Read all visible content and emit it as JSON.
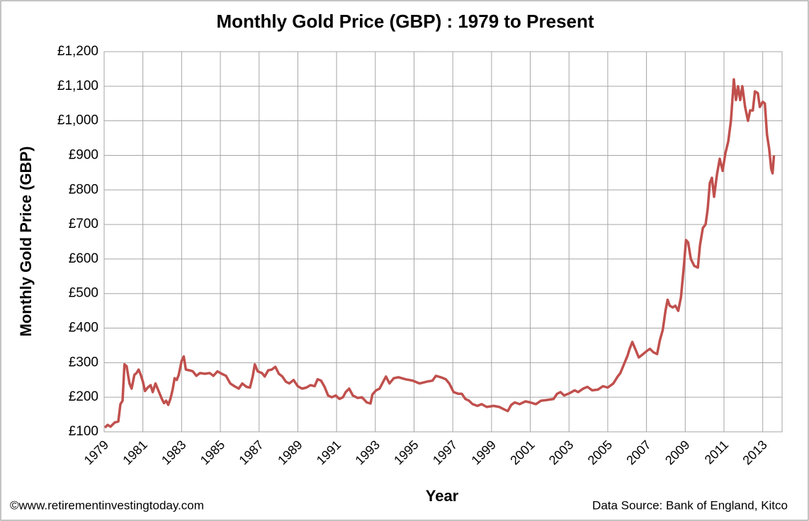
{
  "chart_data": {
    "type": "line",
    "title": "Monthly Gold Price (GBP) : 1979 to Present",
    "x_label": "Year",
    "y_label": "Monthly Gold Price  (GBP)",
    "annotations": [
      "©www.retirementinvestingtoday.com",
      "Data Source: Bank of England, Kitco"
    ],
    "xlim": [
      1979,
      2014
    ],
    "xticks": [
      1979,
      1981,
      1983,
      1985,
      1987,
      1989,
      1991,
      1993,
      1995,
      1997,
      1999,
      2001,
      2003,
      2005,
      2007,
      2009,
      2011,
      2013
    ],
    "ylim": [
      100,
      1200
    ],
    "yticks": [
      {
        "value": 100,
        "label": "£100"
      },
      {
        "value": 200,
        "label": "£200"
      },
      {
        "value": 300,
        "label": "£300"
      },
      {
        "value": 400,
        "label": "£400"
      },
      {
        "value": 500,
        "label": "£500"
      },
      {
        "value": 600,
        "label": "£600"
      },
      {
        "value": 700,
        "label": "£700"
      },
      {
        "value": 800,
        "label": "£800"
      },
      {
        "value": 900,
        "label": "£900"
      },
      {
        "value": 1000,
        "label": "£1,000"
      },
      {
        "value": 1100,
        "label": "£1,100"
      },
      {
        "value": 1200,
        "label": "£1,200"
      }
    ],
    "grid": true,
    "x": [
      1979.04,
      1979.18,
      1979.33,
      1979.55,
      1979.73,
      1979.84,
      1979.95,
      1980.05,
      1980.16,
      1980.31,
      1980.42,
      1980.56,
      1980.67,
      1980.78,
      1980.89,
      1981.0,
      1981.11,
      1981.25,
      1981.4,
      1981.51,
      1981.65,
      1981.76,
      1981.87,
      1981.98,
      1982.09,
      1982.2,
      1982.31,
      1982.42,
      1982.53,
      1982.64,
      1982.75,
      1982.85,
      1983.0,
      1983.11,
      1983.22,
      1983.4,
      1983.58,
      1983.76,
      1983.95,
      1984.2,
      1984.45,
      1984.64,
      1984.85,
      1985.07,
      1985.29,
      1985.51,
      1985.73,
      1985.95,
      1986.13,
      1986.35,
      1986.53,
      1986.67,
      1986.78,
      1986.93,
      1987.15,
      1987.29,
      1987.47,
      1987.65,
      1987.84,
      1988.02,
      1988.2,
      1988.38,
      1988.56,
      1988.78,
      1989.0,
      1989.22,
      1989.44,
      1989.65,
      1989.87,
      1990.02,
      1990.2,
      1990.38,
      1990.56,
      1990.75,
      1990.96,
      1991.15,
      1991.33,
      1991.47,
      1991.65,
      1991.84,
      1992.09,
      1992.31,
      1992.56,
      1992.75,
      1992.85,
      1993.04,
      1993.22,
      1993.36,
      1993.55,
      1993.73,
      1993.95,
      1994.2,
      1994.56,
      1994.93,
      1995.29,
      1995.65,
      1995.95,
      1996.13,
      1996.38,
      1996.64,
      1996.82,
      1997.04,
      1997.29,
      1997.47,
      1997.65,
      1997.84,
      1998.02,
      1998.27,
      1998.49,
      1998.75,
      1999.11,
      1999.4,
      1999.65,
      1999.84,
      2000.02,
      2000.2,
      2000.45,
      2000.75,
      2001.0,
      2001.29,
      2001.55,
      2001.84,
      2002.2,
      2002.38,
      2002.56,
      2002.75,
      2003.04,
      2003.29,
      2003.47,
      2003.73,
      2003.95,
      2004.2,
      2004.49,
      2004.75,
      2005.0,
      2005.29,
      2005.51,
      2005.65,
      2005.87,
      2006.02,
      2006.13,
      2006.27,
      2006.42,
      2006.6,
      2006.82,
      2007.04,
      2007.18,
      2007.36,
      2007.55,
      2007.69,
      2007.84,
      2007.98,
      2008.09,
      2008.2,
      2008.35,
      2008.49,
      2008.64,
      2008.78,
      2008.93,
      2009.04,
      2009.15,
      2009.29,
      2009.47,
      2009.65,
      2009.76,
      2009.91,
      2010.05,
      2010.16,
      2010.27,
      2010.38,
      2010.49,
      2010.64,
      2010.78,
      2010.93,
      2011.07,
      2011.22,
      2011.36,
      2011.51,
      2011.62,
      2011.73,
      2011.84,
      2011.95,
      2012.09,
      2012.24,
      2012.35,
      2012.49,
      2012.6,
      2012.75,
      2012.85,
      2013.0,
      2013.11,
      2013.22,
      2013.33,
      2013.44,
      2013.51,
      2013.58
    ],
    "series": [
      {
        "name": "Monthly Gold Price",
        "color": "#c0504d",
        "values": [
          112,
          120,
          115,
          127,
          130,
          180,
          190,
          295,
          290,
          240,
          225,
          265,
          270,
          280,
          265,
          245,
          218,
          228,
          235,
          215,
          240,
          225,
          210,
          195,
          183,
          190,
          178,
          195,
          220,
          255,
          250,
          265,
          305,
          318,
          280,
          278,
          275,
          262,
          270,
          268,
          270,
          262,
          275,
          268,
          262,
          240,
          232,
          225,
          240,
          230,
          228,
          260,
          295,
          275,
          270,
          260,
          278,
          280,
          288,
          268,
          260,
          245,
          240,
          250,
          232,
          225,
          228,
          235,
          232,
          252,
          248,
          230,
          205,
          200,
          205,
          195,
          200,
          215,
          225,
          205,
          198,
          200,
          185,
          182,
          208,
          220,
          225,
          240,
          260,
          240,
          255,
          258,
          252,
          248,
          240,
          245,
          248,
          262,
          258,
          252,
          240,
          215,
          210,
          210,
          195,
          190,
          180,
          175,
          180,
          172,
          175,
          172,
          165,
          160,
          178,
          185,
          180,
          188,
          185,
          180,
          190,
          192,
          195,
          210,
          215,
          205,
          212,
          220,
          215,
          225,
          230,
          220,
          222,
          232,
          228,
          240,
          260,
          270,
          300,
          320,
          340,
          360,
          340,
          315,
          325,
          335,
          340,
          330,
          325,
          365,
          395,
          450,
          482,
          465,
          460,
          465,
          450,
          490,
          580,
          655,
          648,
          600,
          580,
          575,
          640,
          690,
          700,
          745,
          820,
          835,
          780,
          845,
          890,
          855,
          905,
          940,
          1000,
          1120,
          1060,
          1100,
          1060,
          1100,
          1040,
          1000,
          1030,
          1030,
          1085,
          1080,
          1040,
          1055,
          1050,
          960,
          920,
          860,
          848,
          900
        ]
      }
    ]
  }
}
